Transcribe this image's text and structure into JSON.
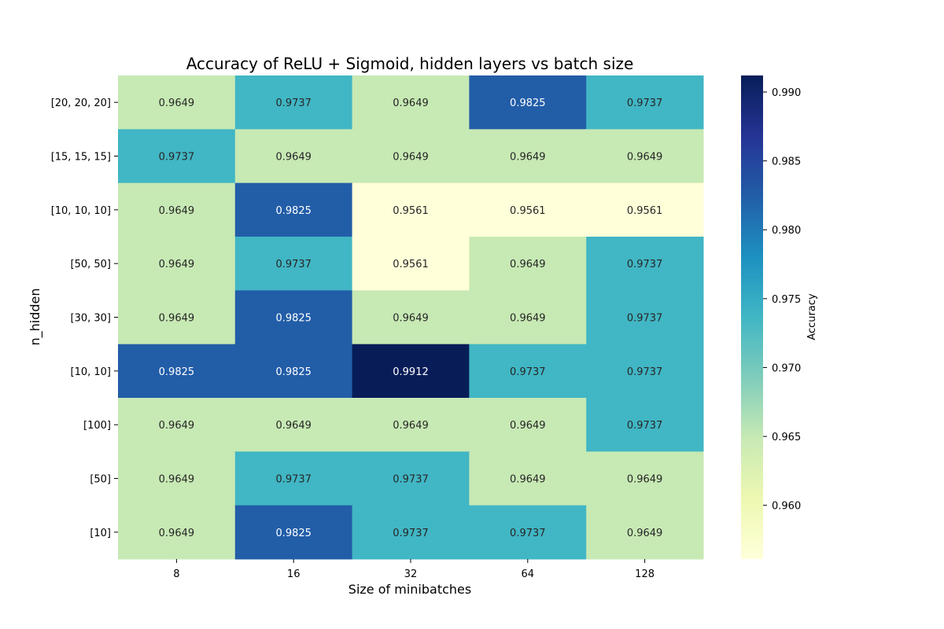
{
  "chart_data": {
    "type": "heatmap",
    "title": "Accuracy of ReLU + Sigmoid, hidden layers vs batch size",
    "xlabel": "Size of minibatches",
    "ylabel": "n_hidden",
    "x_categories": [
      "8",
      "16",
      "32",
      "64",
      "128"
    ],
    "y_categories": [
      "[20, 20, 20]",
      "[15, 15, 15]",
      "[10, 10, 10]",
      "[50, 50]",
      "[30, 30]",
      "[10, 10]",
      "[100]",
      "[50]",
      "[10]"
    ],
    "values": [
      [
        0.9649,
        0.9737,
        0.9649,
        0.9825,
        0.9737
      ],
      [
        0.9737,
        0.9649,
        0.9649,
        0.9649,
        0.9649
      ],
      [
        0.9649,
        0.9825,
        0.9561,
        0.9561,
        0.9561
      ],
      [
        0.9649,
        0.9737,
        0.9561,
        0.9649,
        0.9737
      ],
      [
        0.9649,
        0.9825,
        0.9649,
        0.9649,
        0.9737
      ],
      [
        0.9825,
        0.9825,
        0.9912,
        0.9737,
        0.9737
      ],
      [
        0.9649,
        0.9649,
        0.9649,
        0.9649,
        0.9737
      ],
      [
        0.9649,
        0.9737,
        0.9737,
        0.9649,
        0.9649
      ],
      [
        0.9649,
        0.9825,
        0.9737,
        0.9737,
        0.9649
      ]
    ],
    "value_format": "0.0000",
    "colormap": "YlGnBu",
    "colorbar": {
      "label": "Accuracy",
      "range": [
        0.9561,
        0.9912
      ],
      "ticks": [
        "0.960",
        "0.965",
        "0.970",
        "0.975",
        "0.980",
        "0.985",
        "0.990"
      ]
    },
    "colors": {
      "annotation_dark": "#262626",
      "annotation_light": "#ffffff"
    }
  }
}
